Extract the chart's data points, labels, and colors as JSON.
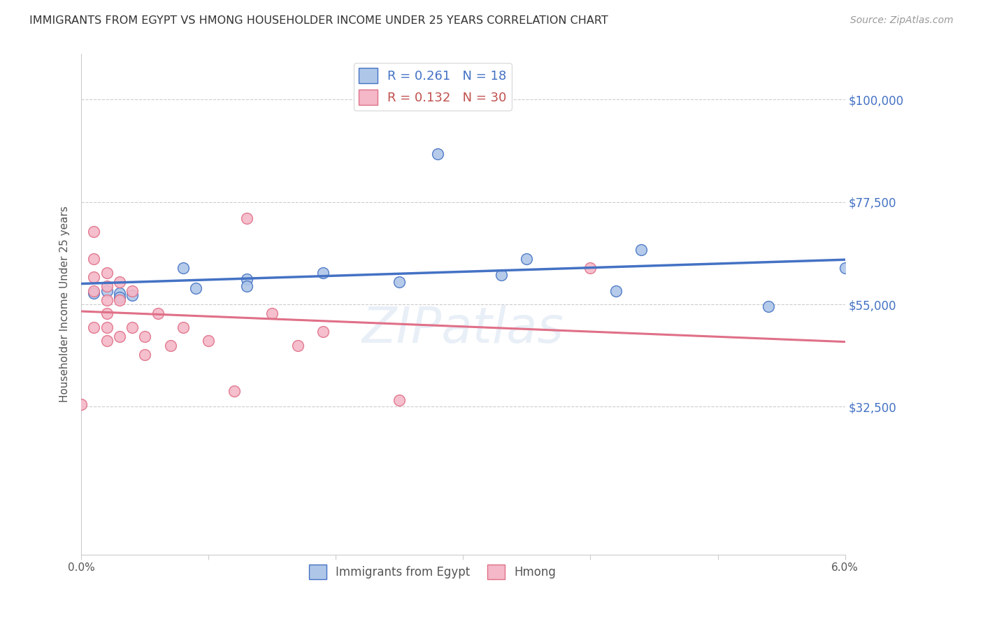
{
  "title": "IMMIGRANTS FROM EGYPT VS HMONG HOUSEHOLDER INCOME UNDER 25 YEARS CORRELATION CHART",
  "source": "Source: ZipAtlas.com",
  "ylabel": "Householder Income Under 25 years",
  "xmin": 0.0,
  "xmax": 0.06,
  "ymin": 0,
  "ymax": 110000,
  "yticks": [
    32500,
    55000,
    77500,
    100000
  ],
  "ytick_labels": [
    "$32,500",
    "$55,000",
    "$77,500",
    "$100,000"
  ],
  "egypt_color": "#aec6e8",
  "egypt_edge_color": "#4472c4",
  "hmong_color": "#f4b8c8",
  "hmong_edge_color": "#e07088",
  "egypt_line_color": "#4472c4",
  "hmong_line_color": "#e07088",
  "hmong_dash_color": "#d4a0b0",
  "watermark": "ZIPatlas",
  "egypt_x": [
    0.001,
    0.002,
    0.003,
    0.003,
    0.004,
    0.008,
    0.009,
    0.013,
    0.013,
    0.019,
    0.025,
    0.028,
    0.033,
    0.035,
    0.042,
    0.044,
    0.054,
    0.06
  ],
  "egypt_y": [
    57500,
    58000,
    57500,
    56500,
    57000,
    63000,
    58500,
    60500,
    59000,
    62000,
    60000,
    88000,
    61500,
    65000,
    58000,
    67000,
    54500,
    63000
  ],
  "hmong_x": [
    0.0,
    0.001,
    0.001,
    0.001,
    0.001,
    0.001,
    0.002,
    0.002,
    0.002,
    0.002,
    0.002,
    0.002,
    0.003,
    0.003,
    0.003,
    0.004,
    0.004,
    0.005,
    0.005,
    0.006,
    0.007,
    0.008,
    0.01,
    0.012,
    0.013,
    0.015,
    0.017,
    0.019,
    0.025,
    0.04
  ],
  "hmong_y": [
    33000,
    71000,
    65000,
    61000,
    58000,
    50000,
    62000,
    59000,
    56000,
    53000,
    50000,
    47000,
    60000,
    56000,
    48000,
    58000,
    50000,
    48000,
    44000,
    53000,
    46000,
    50000,
    47000,
    36000,
    74000,
    53000,
    46000,
    49000,
    34000,
    63000
  ]
}
